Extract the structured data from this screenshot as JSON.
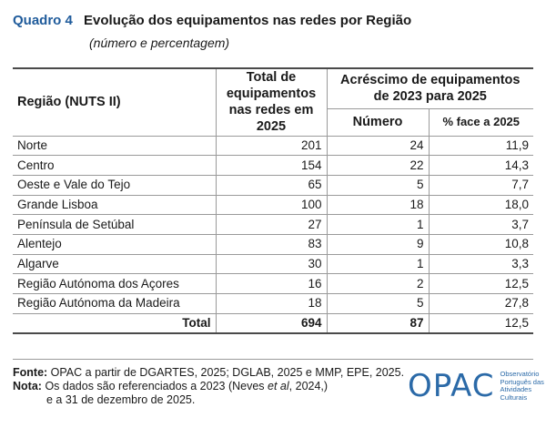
{
  "title": {
    "label": "Quadro 4",
    "text": "Evolução dos equipamentos nas redes por Região",
    "subtitle": "(número e percentagem)"
  },
  "table": {
    "headers": {
      "region": "Região (NUTS II)",
      "total_line1": "Total de",
      "total_line2": "equipamentos",
      "total_line3": "nas redes em",
      "total_line4": "2025",
      "increase_line1": "Acréscimo de equipamentos",
      "increase_line2": "de 2023 para 2025",
      "number": "Número",
      "percent": "% face a 2025"
    },
    "rows": [
      {
        "region": "Norte",
        "total": "201",
        "number": "24",
        "percent": "11,9"
      },
      {
        "region": "Centro",
        "total": "154",
        "number": "22",
        "percent": "14,3"
      },
      {
        "region": "Oeste e Vale do Tejo",
        "total": "65",
        "number": "5",
        "percent": "7,7"
      },
      {
        "region": "Grande Lisboa",
        "total": "100",
        "number": "18",
        "percent": "18,0"
      },
      {
        "region": "Península de Setúbal",
        "total": "27",
        "number": "1",
        "percent": "3,7"
      },
      {
        "region": "Alentejo",
        "total": "83",
        "number": "9",
        "percent": "10,8"
      },
      {
        "region": "Algarve",
        "total": "30",
        "number": "1",
        "percent": "3,3"
      },
      {
        "region": "Região Autónoma dos Açores",
        "total": "16",
        "number": "2",
        "percent": "12,5"
      },
      {
        "region": "Região Autónoma da Madeira",
        "total": "18",
        "number": "5",
        "percent": "27,8"
      }
    ],
    "total_row": {
      "label": "Total",
      "total": "694",
      "number": "87",
      "percent": "12,5"
    }
  },
  "footer": {
    "source_label": "Fonte:",
    "source_text": "OPAC a partir de DGARTES, 2025; DGLAB, 2025 e MMP, EPE, 2025.",
    "note_label": "Nota:",
    "note_text_1": "Os dados são referenciados a 2023 (Neves ",
    "note_italic": "et al",
    "note_text_2": ", 2024,)",
    "note_text_3": "e a 31 de dezembro de 2025."
  },
  "logo": {
    "word": "OPAC",
    "line1": "Observatório",
    "line2": "Português das",
    "line3": "Atividades Culturais"
  }
}
